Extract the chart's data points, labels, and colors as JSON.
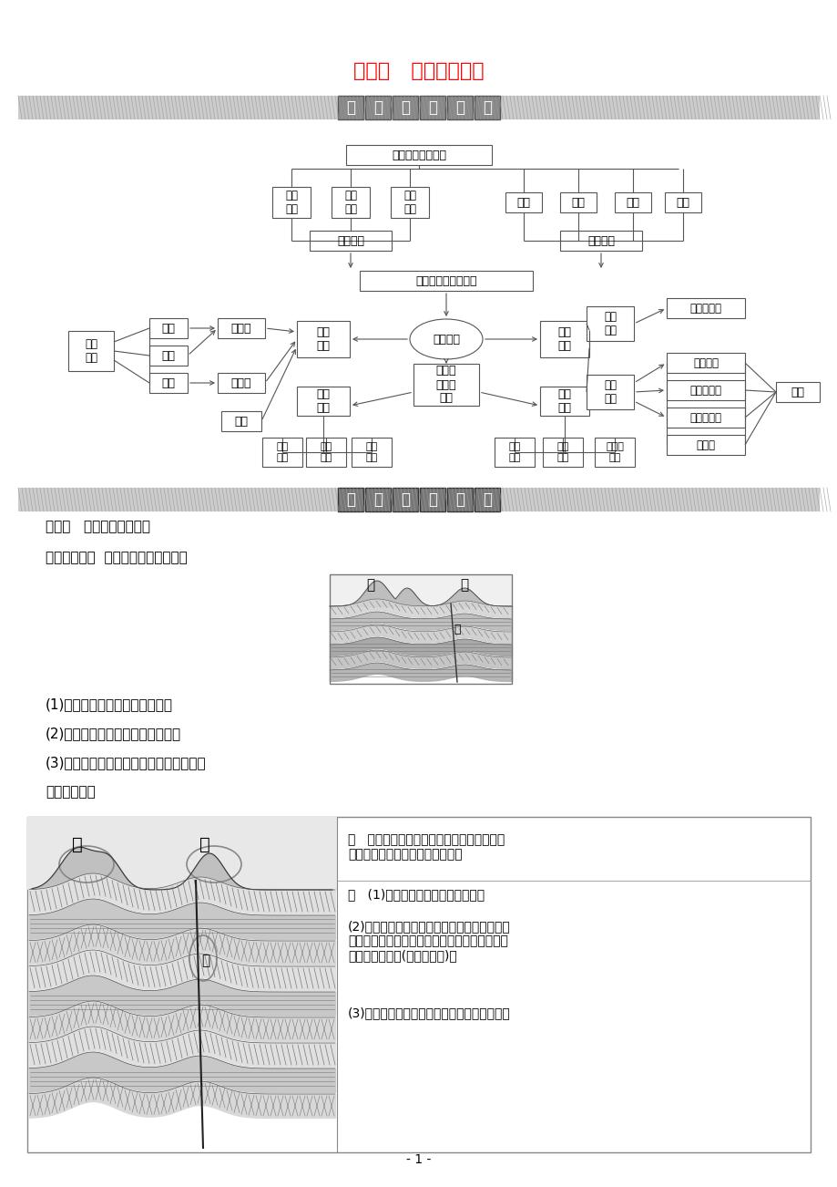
{
  "title": "第四章   章末整合提升",
  "title_color": "#FF0000",
  "bg_color": "#FFFFFF",
  "section1_label": "知识网络构建",
  "section2_label": "高频考点突破",
  "page_num": "- 1 -",
  "nodes": {
    "top": "岩石圈的物质循环",
    "li1": "岩浆\n活动",
    "li2": "地壳\n运动",
    "li3": "变质\n作用",
    "ri1": "风化",
    "ri2": "侵蚀",
    "ri3": "搬运",
    "ri4": "堆积",
    "inner": "内力作用",
    "outer": "外力作用",
    "shaping": "营造地表形态的力量",
    "surface": "地表形态",
    "mountain": "山地\n地形",
    "traffic": "交通\n运输",
    "human": "对人类\n活动的\n影响",
    "cluster": "聚落\n分布",
    "river": "河流\n地貌",
    "judge": "判断\n方法",
    "anticline": "向斜",
    "syncline": "背斜",
    "fault": "断层",
    "fold_mtn": "褶皱山",
    "fault_mtn": "断块山",
    "volcano": "火山",
    "erosion": "侵蚀\n作用",
    "accum": "堆积\n作用",
    "valley": "沟谷及其他",
    "alluvial": "洪积平原",
    "floodplain": "河漫滩平原",
    "delta": "三角洲平原",
    "island": "冲积岛",
    "transport_r": "搬运",
    "t_method": "运输\n方式",
    "t_dist": "线路\n分布",
    "t_dir": "线路\n走向",
    "narrow": "狭窄\n带状",
    "obvious": "明显\n带状",
    "band": "带状、\n团状"
  },
  "kaodian": "考点一   地质构造图的判读",
  "liti": "【典型例题】  读图，回答下列问题。",
  "q1": "(1)图中的地质构造有哪些类型？",
  "q2": "(2)判断图中地质构造的先后顺序？",
  "q3": "(3)岩层分布与地壳运动的关系是怎样的？",
  "analysis": "【析图过程】",
  "find_text": "找   在图中找出岩层的弯曲方向或岩层的新老\n关系，找出发生断裂位移的地带。",
  "xi_text1": "析   (1)判断地质构造：向斜、断层。",
  "xi_text2": "(2)判断岩层分布与地壳运动的关系：岩层弯曲\n变形，说明地壳发生水平运动。断裂错位说明地\n壳发生垂直运动(或水平运动)。",
  "xi_text3": "(3)判断地质构造形成的先后顺序：丙处岩层断"
}
